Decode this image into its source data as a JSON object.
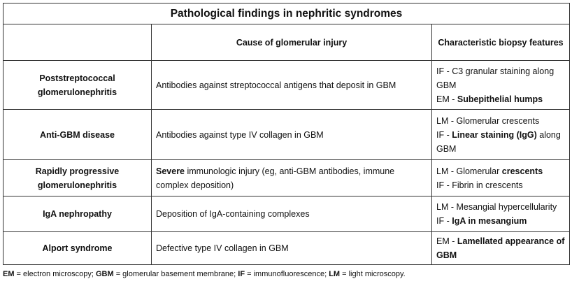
{
  "title": "Pathological findings in nephritic syndromes",
  "headers": {
    "col1": "",
    "col2": "Cause of glomerular injury",
    "col3": "Characteristic biopsy features"
  },
  "rows": [
    {
      "name": "Poststreptococcal glomerulonephritis",
      "cause": [
        {
          "t": "Antibodies against streptococcal antigens that deposit in GBM",
          "b": false
        }
      ],
      "biopsy": [
        [
          {
            "t": "IF - C3 granular staining along GBM",
            "b": false
          }
        ],
        [
          {
            "t": "EM - ",
            "b": false
          },
          {
            "t": "Subepithelial humps",
            "b": true
          }
        ]
      ]
    },
    {
      "name": "Anti-GBM disease",
      "cause": [
        {
          "t": "Antibodies against type IV collagen in GBM",
          "b": false
        }
      ],
      "biopsy": [
        [
          {
            "t": "LM - Glomerular crescents",
            "b": false
          }
        ],
        [
          {
            "t": "IF - ",
            "b": false
          },
          {
            "t": "Linear staining (IgG)",
            "b": true
          },
          {
            "t": " along GBM",
            "b": false
          }
        ]
      ]
    },
    {
      "name": "Rapidly progressive glomerulonephritis",
      "cause": [
        {
          "t": "Severe",
          "b": true
        },
        {
          "t": " immunologic injury (eg, anti-GBM antibodies, immune complex deposition)",
          "b": false
        }
      ],
      "biopsy": [
        [
          {
            "t": "LM - Glomerular ",
            "b": false
          },
          {
            "t": "crescents",
            "b": true
          }
        ],
        [
          {
            "t": "IF -  Fibrin in crescents",
            "b": false
          }
        ]
      ]
    },
    {
      "name": "IgA nephropathy",
      "cause": [
        {
          "t": "Deposition of IgA-containing complexes",
          "b": false
        }
      ],
      "biopsy": [
        [
          {
            "t": "LM - Mesangial hypercellularity",
            "b": false
          }
        ],
        [
          {
            "t": "IF -  ",
            "b": false
          },
          {
            "t": "IgA in mesangium",
            "b": true
          }
        ]
      ]
    },
    {
      "name": "Alport syndrome",
      "cause": [
        {
          "t": "Defective type IV collagen in GBM",
          "b": false
        }
      ],
      "biopsy": [
        [
          {
            "t": "EM - ",
            "b": false
          },
          {
            "t": "Lamellated appearance of GBM",
            "b": true
          }
        ]
      ]
    }
  ],
  "footnote": [
    {
      "t": "EM",
      "b": true
    },
    {
      "t": " = electron microscopy; ",
      "b": false
    },
    {
      "t": "GBM",
      "b": true
    },
    {
      "t": " = glomerular basement membrane; ",
      "b": false
    },
    {
      "t": "IF",
      "b": true
    },
    {
      "t": " = immunofluorescence; ",
      "b": false
    },
    {
      "t": "LM",
      "b": true
    },
    {
      "t": " = light microscopy.",
      "b": false
    }
  ]
}
